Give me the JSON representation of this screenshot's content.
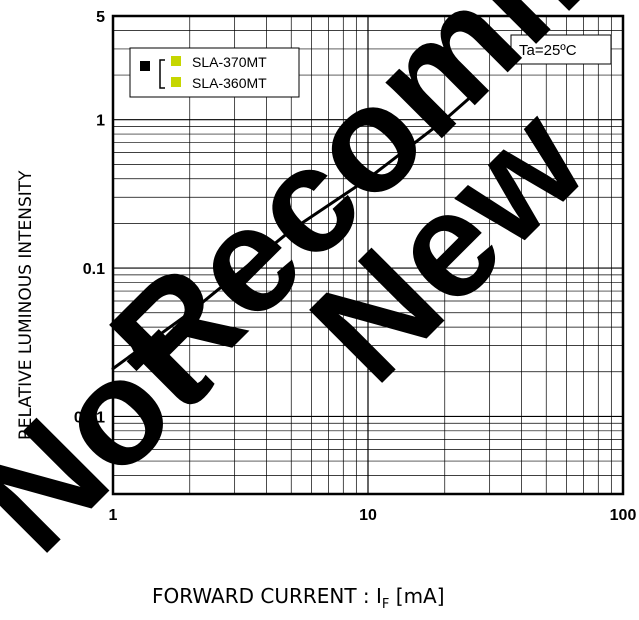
{
  "chart_data": {
    "type": "line",
    "scale": "log-log",
    "xlabel_main": "FORWARD CURRENT : I",
    "xlabel_sub": "F",
    "xlabel_unit": " [mA]",
    "ylabel": "RELATIVE LUMINOUS INTENSITY",
    "xlim": [
      1,
      100
    ],
    "ylim": [
      0.003,
      5
    ],
    "x_ticks": [
      1,
      10,
      100
    ],
    "x_tick_labels": [
      "1",
      "10",
      "100"
    ],
    "y_ticks": [
      0.01,
      0.1,
      1,
      5
    ],
    "y_tick_labels": [
      "0.01",
      "0.1",
      "1",
      "5"
    ],
    "grid": true,
    "condition": "Ta=25ºC",
    "legend": {
      "placement": "top-left",
      "entries": [
        "SLA-370MT",
        "SLA-360MT"
      ],
      "colors": [
        "#000000",
        "#c6d600"
      ]
    },
    "series": [
      {
        "color": "#000000",
        "x": [
          1,
          2,
          5,
          10,
          20,
          25
        ],
        "y": [
          0.021,
          0.05,
          0.18,
          0.4,
          1.0,
          1.4
        ]
      }
    ],
    "watermark": [
      "Not",
      "Recommended for",
      "New"
    ]
  }
}
